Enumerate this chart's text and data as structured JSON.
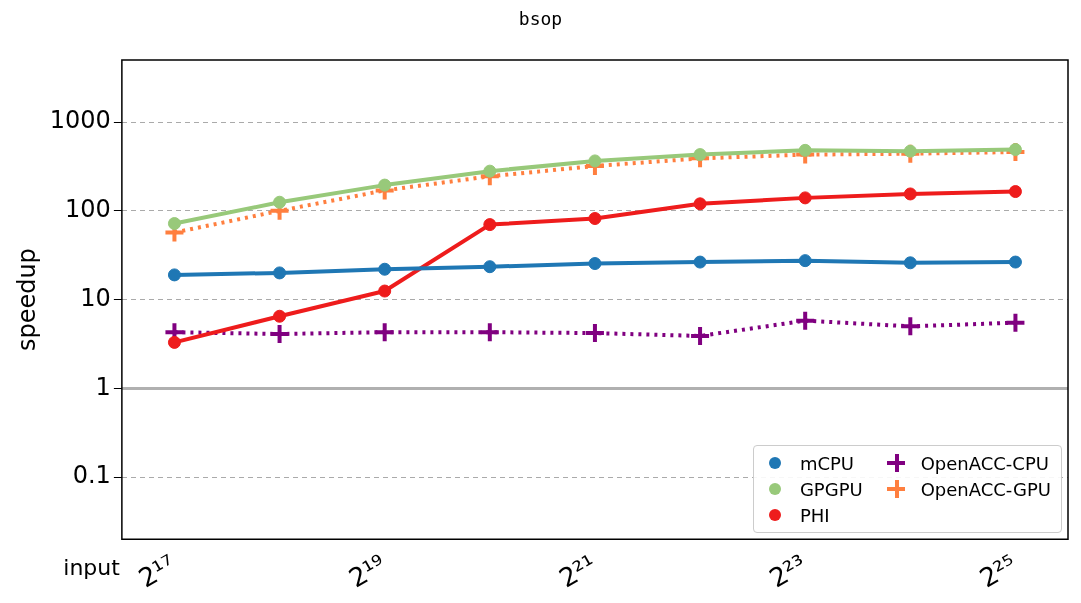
{
  "chart_data": {
    "type": "line",
    "title": "bsop",
    "xlabel": "input",
    "ylabel": "speedup",
    "categories": [
      "2¹⁷",
      null,
      "2¹⁹",
      null,
      "2²¹",
      null,
      "2²³",
      null,
      "2²⁵"
    ],
    "series": [
      {
        "name": "mCPU",
        "color": "#1f77b4",
        "marker": "circle",
        "line_style": "solid",
        "values": [
          19,
          20,
          22,
          23.5,
          25.5,
          26.5,
          27.5,
          26,
          26.5
        ]
      },
      {
        "name": "GPGPU",
        "color": "#98c97a",
        "marker": "circle",
        "line_style": "solid",
        "values": [
          72,
          125,
          195,
          280,
          365,
          430,
          480,
          470,
          490
        ]
      },
      {
        "name": "PHI",
        "color": "#ee1c1c",
        "marker": "circle",
        "line_style": "solid",
        "values": [
          3.3,
          6.5,
          12.5,
          70,
          82,
          120,
          140,
          155,
          165
        ]
      },
      {
        "name": "OpenACC-CPU",
        "color": "#800080",
        "marker": "cross",
        "line_style": "dotted",
        "values": [
          4.3,
          4.1,
          4.3,
          4.3,
          4.2,
          3.9,
          5.8,
          5.0,
          5.5
        ]
      },
      {
        "name": "OpenACC-GPU",
        "color": "#ff7f3f",
        "marker": "cross",
        "line_style": "dotted",
        "values": [
          57,
          100,
          170,
          245,
          320,
          390,
          430,
          440,
          460
        ]
      }
    ],
    "log": "y",
    "ylim": [
      0.02,
      5000
    ],
    "yticks": [
      0.1,
      1,
      10,
      100,
      1000
    ],
    "grid": "y",
    "legend": "bottom right",
    "ref_lines": [
      {
        "axis": "y",
        "value": 1,
        "color": "#b0b0b0",
        "line_style": "solid"
      }
    ]
  }
}
